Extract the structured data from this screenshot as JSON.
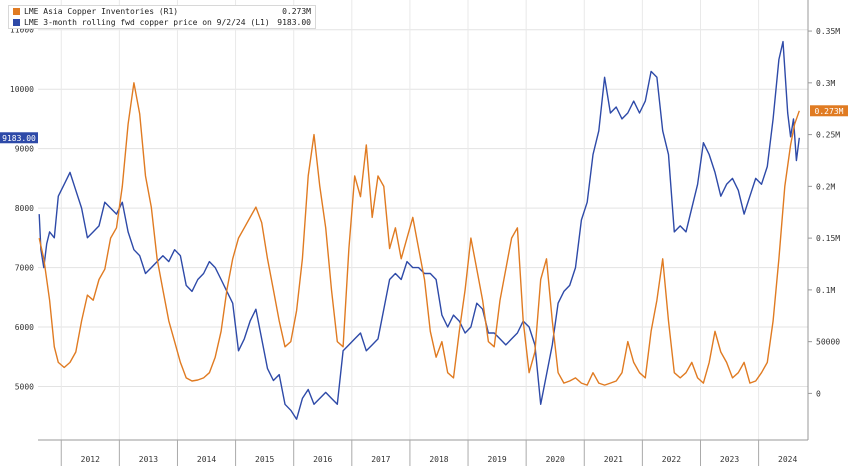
{
  "legend": {
    "items": [
      {
        "label": "LME Asia Copper Inventories (R1)",
        "value": "0.273M",
        "color": "#e07b22"
      },
      {
        "label": "LME 3-month rolling fwd copper price on 9/2/24 (L1)",
        "value": "9183.00",
        "color": "#2e4aa8"
      }
    ]
  },
  "chart_data": {
    "type": "line",
    "x_ticks": [
      "2012",
      "2013",
      "2014",
      "2015",
      "2016",
      "2017",
      "2018",
      "2019",
      "2020",
      "2021",
      "2022",
      "2023",
      "2024"
    ],
    "x_range": [
      2011.6,
      2024.85
    ],
    "y_left": {
      "ticks": [
        "5000",
        "6000",
        "7000",
        "8000",
        "9000",
        "10000",
        "11000"
      ],
      "range": [
        4100,
        11500
      ]
    },
    "y_right": {
      "ticks": [
        "0",
        "50000",
        "0.1M",
        "0.15M",
        "0.2M",
        "0.25M",
        "0.3M",
        "0.35M"
      ],
      "range": [
        -0.045,
        0.38
      ]
    },
    "series": [
      {
        "name": "LME 3-month rolling fwd copper price on 9/2/24 (L1)",
        "axis": "left",
        "color": "#2e4aa8",
        "last_value_label": "9183.00",
        "points": [
          [
            2011.62,
            7900
          ],
          [
            2011.65,
            7300
          ],
          [
            2011.7,
            7000
          ],
          [
            2011.75,
            7400
          ],
          [
            2011.8,
            7600
          ],
          [
            2011.88,
            7500
          ],
          [
            2011.95,
            8200
          ],
          [
            2012.05,
            8400
          ],
          [
            2012.15,
            8600
          ],
          [
            2012.25,
            8300
          ],
          [
            2012.35,
            8000
          ],
          [
            2012.45,
            7500
          ],
          [
            2012.55,
            7600
          ],
          [
            2012.65,
            7700
          ],
          [
            2012.75,
            8100
          ],
          [
            2012.85,
            8000
          ],
          [
            2012.95,
            7900
          ],
          [
            2013.05,
            8100
          ],
          [
            2013.15,
            7600
          ],
          [
            2013.25,
            7300
          ],
          [
            2013.35,
            7200
          ],
          [
            2013.45,
            6900
          ],
          [
            2013.55,
            7000
          ],
          [
            2013.65,
            7100
          ],
          [
            2013.75,
            7200
          ],
          [
            2013.85,
            7100
          ],
          [
            2013.95,
            7300
          ],
          [
            2014.05,
            7200
          ],
          [
            2014.15,
            6700
          ],
          [
            2014.25,
            6600
          ],
          [
            2014.35,
            6800
          ],
          [
            2014.45,
            6900
          ],
          [
            2014.55,
            7100
          ],
          [
            2014.65,
            7000
          ],
          [
            2014.75,
            6800
          ],
          [
            2014.85,
            6600
          ],
          [
            2014.95,
            6400
          ],
          [
            2015.05,
            5600
          ],
          [
            2015.15,
            5800
          ],
          [
            2015.25,
            6100
          ],
          [
            2015.35,
            6300
          ],
          [
            2015.45,
            5800
          ],
          [
            2015.55,
            5300
          ],
          [
            2015.65,
            5100
          ],
          [
            2015.75,
            5200
          ],
          [
            2015.85,
            4700
          ],
          [
            2015.95,
            4600
          ],
          [
            2016.05,
            4450
          ],
          [
            2016.15,
            4800
          ],
          [
            2016.25,
            4950
          ],
          [
            2016.35,
            4700
          ],
          [
            2016.45,
            4800
          ],
          [
            2016.55,
            4900
          ],
          [
            2016.65,
            4800
          ],
          [
            2016.75,
            4700
          ],
          [
            2016.85,
            5600
          ],
          [
            2016.95,
            5700
          ],
          [
            2017.05,
            5800
          ],
          [
            2017.15,
            5900
          ],
          [
            2017.25,
            5600
          ],
          [
            2017.35,
            5700
          ],
          [
            2017.45,
            5800
          ],
          [
            2017.55,
            6300
          ],
          [
            2017.65,
            6800
          ],
          [
            2017.75,
            6900
          ],
          [
            2017.85,
            6800
          ],
          [
            2017.95,
            7100
          ],
          [
            2018.05,
            7000
          ],
          [
            2018.15,
            7000
          ],
          [
            2018.25,
            6900
          ],
          [
            2018.35,
            6900
          ],
          [
            2018.45,
            6800
          ],
          [
            2018.55,
            6200
          ],
          [
            2018.65,
            6000
          ],
          [
            2018.75,
            6200
          ],
          [
            2018.85,
            6100
          ],
          [
            2018.95,
            5900
          ],
          [
            2019.05,
            6000
          ],
          [
            2019.15,
            6400
          ],
          [
            2019.25,
            6300
          ],
          [
            2019.35,
            5900
          ],
          [
            2019.45,
            5900
          ],
          [
            2019.55,
            5800
          ],
          [
            2019.65,
            5700
          ],
          [
            2019.75,
            5800
          ],
          [
            2019.85,
            5900
          ],
          [
            2019.95,
            6100
          ],
          [
            2020.05,
            6000
          ],
          [
            2020.15,
            5700
          ],
          [
            2020.25,
            4700
          ],
          [
            2020.35,
            5200
          ],
          [
            2020.45,
            5700
          ],
          [
            2020.55,
            6400
          ],
          [
            2020.65,
            6600
          ],
          [
            2020.75,
            6700
          ],
          [
            2020.85,
            7000
          ],
          [
            2020.95,
            7800
          ],
          [
            2021.05,
            8100
          ],
          [
            2021.15,
            8900
          ],
          [
            2021.25,
            9300
          ],
          [
            2021.35,
            10200
          ],
          [
            2021.45,
            9600
          ],
          [
            2021.55,
            9700
          ],
          [
            2021.65,
            9500
          ],
          [
            2021.75,
            9600
          ],
          [
            2021.85,
            9800
          ],
          [
            2021.95,
            9600
          ],
          [
            2022.05,
            9800
          ],
          [
            2022.15,
            10300
          ],
          [
            2022.25,
            10200
          ],
          [
            2022.35,
            9300
          ],
          [
            2022.45,
            8900
          ],
          [
            2022.55,
            7600
          ],
          [
            2022.65,
            7700
          ],
          [
            2022.75,
            7600
          ],
          [
            2022.85,
            8000
          ],
          [
            2022.95,
            8400
          ],
          [
            2023.05,
            9100
          ],
          [
            2023.15,
            8900
          ],
          [
            2023.25,
            8600
          ],
          [
            2023.35,
            8200
          ],
          [
            2023.45,
            8400
          ],
          [
            2023.55,
            8500
          ],
          [
            2023.65,
            8300
          ],
          [
            2023.75,
            7900
          ],
          [
            2023.85,
            8200
          ],
          [
            2023.95,
            8500
          ],
          [
            2024.05,
            8400
          ],
          [
            2024.15,
            8700
          ],
          [
            2024.25,
            9500
          ],
          [
            2024.35,
            10500
          ],
          [
            2024.42,
            10800
          ],
          [
            2024.5,
            9600
          ],
          [
            2024.55,
            9200
          ],
          [
            2024.6,
            9500
          ],
          [
            2024.65,
            8800
          ],
          [
            2024.7,
            9183
          ]
        ]
      },
      {
        "name": "LME Asia Copper Inventories (R1)",
        "axis": "right",
        "color": "#e07b22",
        "last_value_label": "0.273M",
        "points": [
          [
            2011.62,
            0.15
          ],
          [
            2011.7,
            0.13
          ],
          [
            2011.8,
            0.09
          ],
          [
            2011.88,
            0.045
          ],
          [
            2011.95,
            0.03
          ],
          [
            2012.05,
            0.025
          ],
          [
            2012.15,
            0.03
          ],
          [
            2012.25,
            0.04
          ],
          [
            2012.35,
            0.07
          ],
          [
            2012.45,
            0.095
          ],
          [
            2012.55,
            0.09
          ],
          [
            2012.65,
            0.11
          ],
          [
            2012.75,
            0.12
          ],
          [
            2012.85,
            0.15
          ],
          [
            2012.95,
            0.16
          ],
          [
            2013.05,
            0.2
          ],
          [
            2013.15,
            0.26
          ],
          [
            2013.25,
            0.3
          ],
          [
            2013.35,
            0.27
          ],
          [
            2013.45,
            0.21
          ],
          [
            2013.55,
            0.18
          ],
          [
            2013.65,
            0.13
          ],
          [
            2013.75,
            0.1
          ],
          [
            2013.85,
            0.07
          ],
          [
            2013.95,
            0.05
          ],
          [
            2014.05,
            0.03
          ],
          [
            2014.15,
            0.015
          ],
          [
            2014.25,
            0.012
          ],
          [
            2014.35,
            0.013
          ],
          [
            2014.45,
            0.015
          ],
          [
            2014.55,
            0.02
          ],
          [
            2014.65,
            0.035
          ],
          [
            2014.75,
            0.06
          ],
          [
            2014.85,
            0.1
          ],
          [
            2014.95,
            0.13
          ],
          [
            2015.05,
            0.15
          ],
          [
            2015.15,
            0.16
          ],
          [
            2015.25,
            0.17
          ],
          [
            2015.35,
            0.18
          ],
          [
            2015.45,
            0.165
          ],
          [
            2015.55,
            0.13
          ],
          [
            2015.65,
            0.1
          ],
          [
            2015.75,
            0.07
          ],
          [
            2015.85,
            0.045
          ],
          [
            2015.95,
            0.05
          ],
          [
            2016.05,
            0.08
          ],
          [
            2016.15,
            0.13
          ],
          [
            2016.25,
            0.21
          ],
          [
            2016.35,
            0.25
          ],
          [
            2016.45,
            0.2
          ],
          [
            2016.55,
            0.16
          ],
          [
            2016.65,
            0.1
          ],
          [
            2016.75,
            0.05
          ],
          [
            2016.85,
            0.045
          ],
          [
            2016.95,
            0.14
          ],
          [
            2017.05,
            0.21
          ],
          [
            2017.15,
            0.19
          ],
          [
            2017.25,
            0.24
          ],
          [
            2017.35,
            0.17
          ],
          [
            2017.45,
            0.21
          ],
          [
            2017.55,
            0.2
          ],
          [
            2017.65,
            0.14
          ],
          [
            2017.75,
            0.16
          ],
          [
            2017.85,
            0.13
          ],
          [
            2017.95,
            0.15
          ],
          [
            2018.05,
            0.17
          ],
          [
            2018.15,
            0.14
          ],
          [
            2018.25,
            0.11
          ],
          [
            2018.35,
            0.06
          ],
          [
            2018.45,
            0.035
          ],
          [
            2018.55,
            0.05
          ],
          [
            2018.65,
            0.02
          ],
          [
            2018.75,
            0.015
          ],
          [
            2018.85,
            0.06
          ],
          [
            2018.95,
            0.1
          ],
          [
            2019.05,
            0.15
          ],
          [
            2019.15,
            0.12
          ],
          [
            2019.25,
            0.09
          ],
          [
            2019.35,
            0.05
          ],
          [
            2019.45,
            0.045
          ],
          [
            2019.55,
            0.09
          ],
          [
            2019.65,
            0.12
          ],
          [
            2019.75,
            0.15
          ],
          [
            2019.85,
            0.16
          ],
          [
            2019.95,
            0.07
          ],
          [
            2020.05,
            0.02
          ],
          [
            2020.15,
            0.04
          ],
          [
            2020.25,
            0.11
          ],
          [
            2020.35,
            0.13
          ],
          [
            2020.45,
            0.07
          ],
          [
            2020.55,
            0.02
          ],
          [
            2020.65,
            0.01
          ],
          [
            2020.75,
            0.012
          ],
          [
            2020.85,
            0.015
          ],
          [
            2020.95,
            0.01
          ],
          [
            2021.05,
            0.008
          ],
          [
            2021.15,
            0.02
          ],
          [
            2021.25,
            0.01
          ],
          [
            2021.35,
            0.008
          ],
          [
            2021.45,
            0.01
          ],
          [
            2021.55,
            0.012
          ],
          [
            2021.65,
            0.02
          ],
          [
            2021.75,
            0.05
          ],
          [
            2021.85,
            0.03
          ],
          [
            2021.95,
            0.02
          ],
          [
            2022.05,
            0.015
          ],
          [
            2022.15,
            0.06
          ],
          [
            2022.25,
            0.09
          ],
          [
            2022.35,
            0.13
          ],
          [
            2022.45,
            0.07
          ],
          [
            2022.55,
            0.02
          ],
          [
            2022.65,
            0.015
          ],
          [
            2022.75,
            0.02
          ],
          [
            2022.85,
            0.03
          ],
          [
            2022.95,
            0.015
          ],
          [
            2023.05,
            0.01
          ],
          [
            2023.15,
            0.03
          ],
          [
            2023.25,
            0.06
          ],
          [
            2023.35,
            0.04
          ],
          [
            2023.45,
            0.03
          ],
          [
            2023.55,
            0.015
          ],
          [
            2023.65,
            0.02
          ],
          [
            2023.75,
            0.03
          ],
          [
            2023.85,
            0.01
          ],
          [
            2023.95,
            0.012
          ],
          [
            2024.05,
            0.02
          ],
          [
            2024.15,
            0.03
          ],
          [
            2024.25,
            0.07
          ],
          [
            2024.35,
            0.13
          ],
          [
            2024.45,
            0.2
          ],
          [
            2024.55,
            0.24
          ],
          [
            2024.62,
            0.26
          ],
          [
            2024.7,
            0.273
          ]
        ]
      }
    ]
  }
}
